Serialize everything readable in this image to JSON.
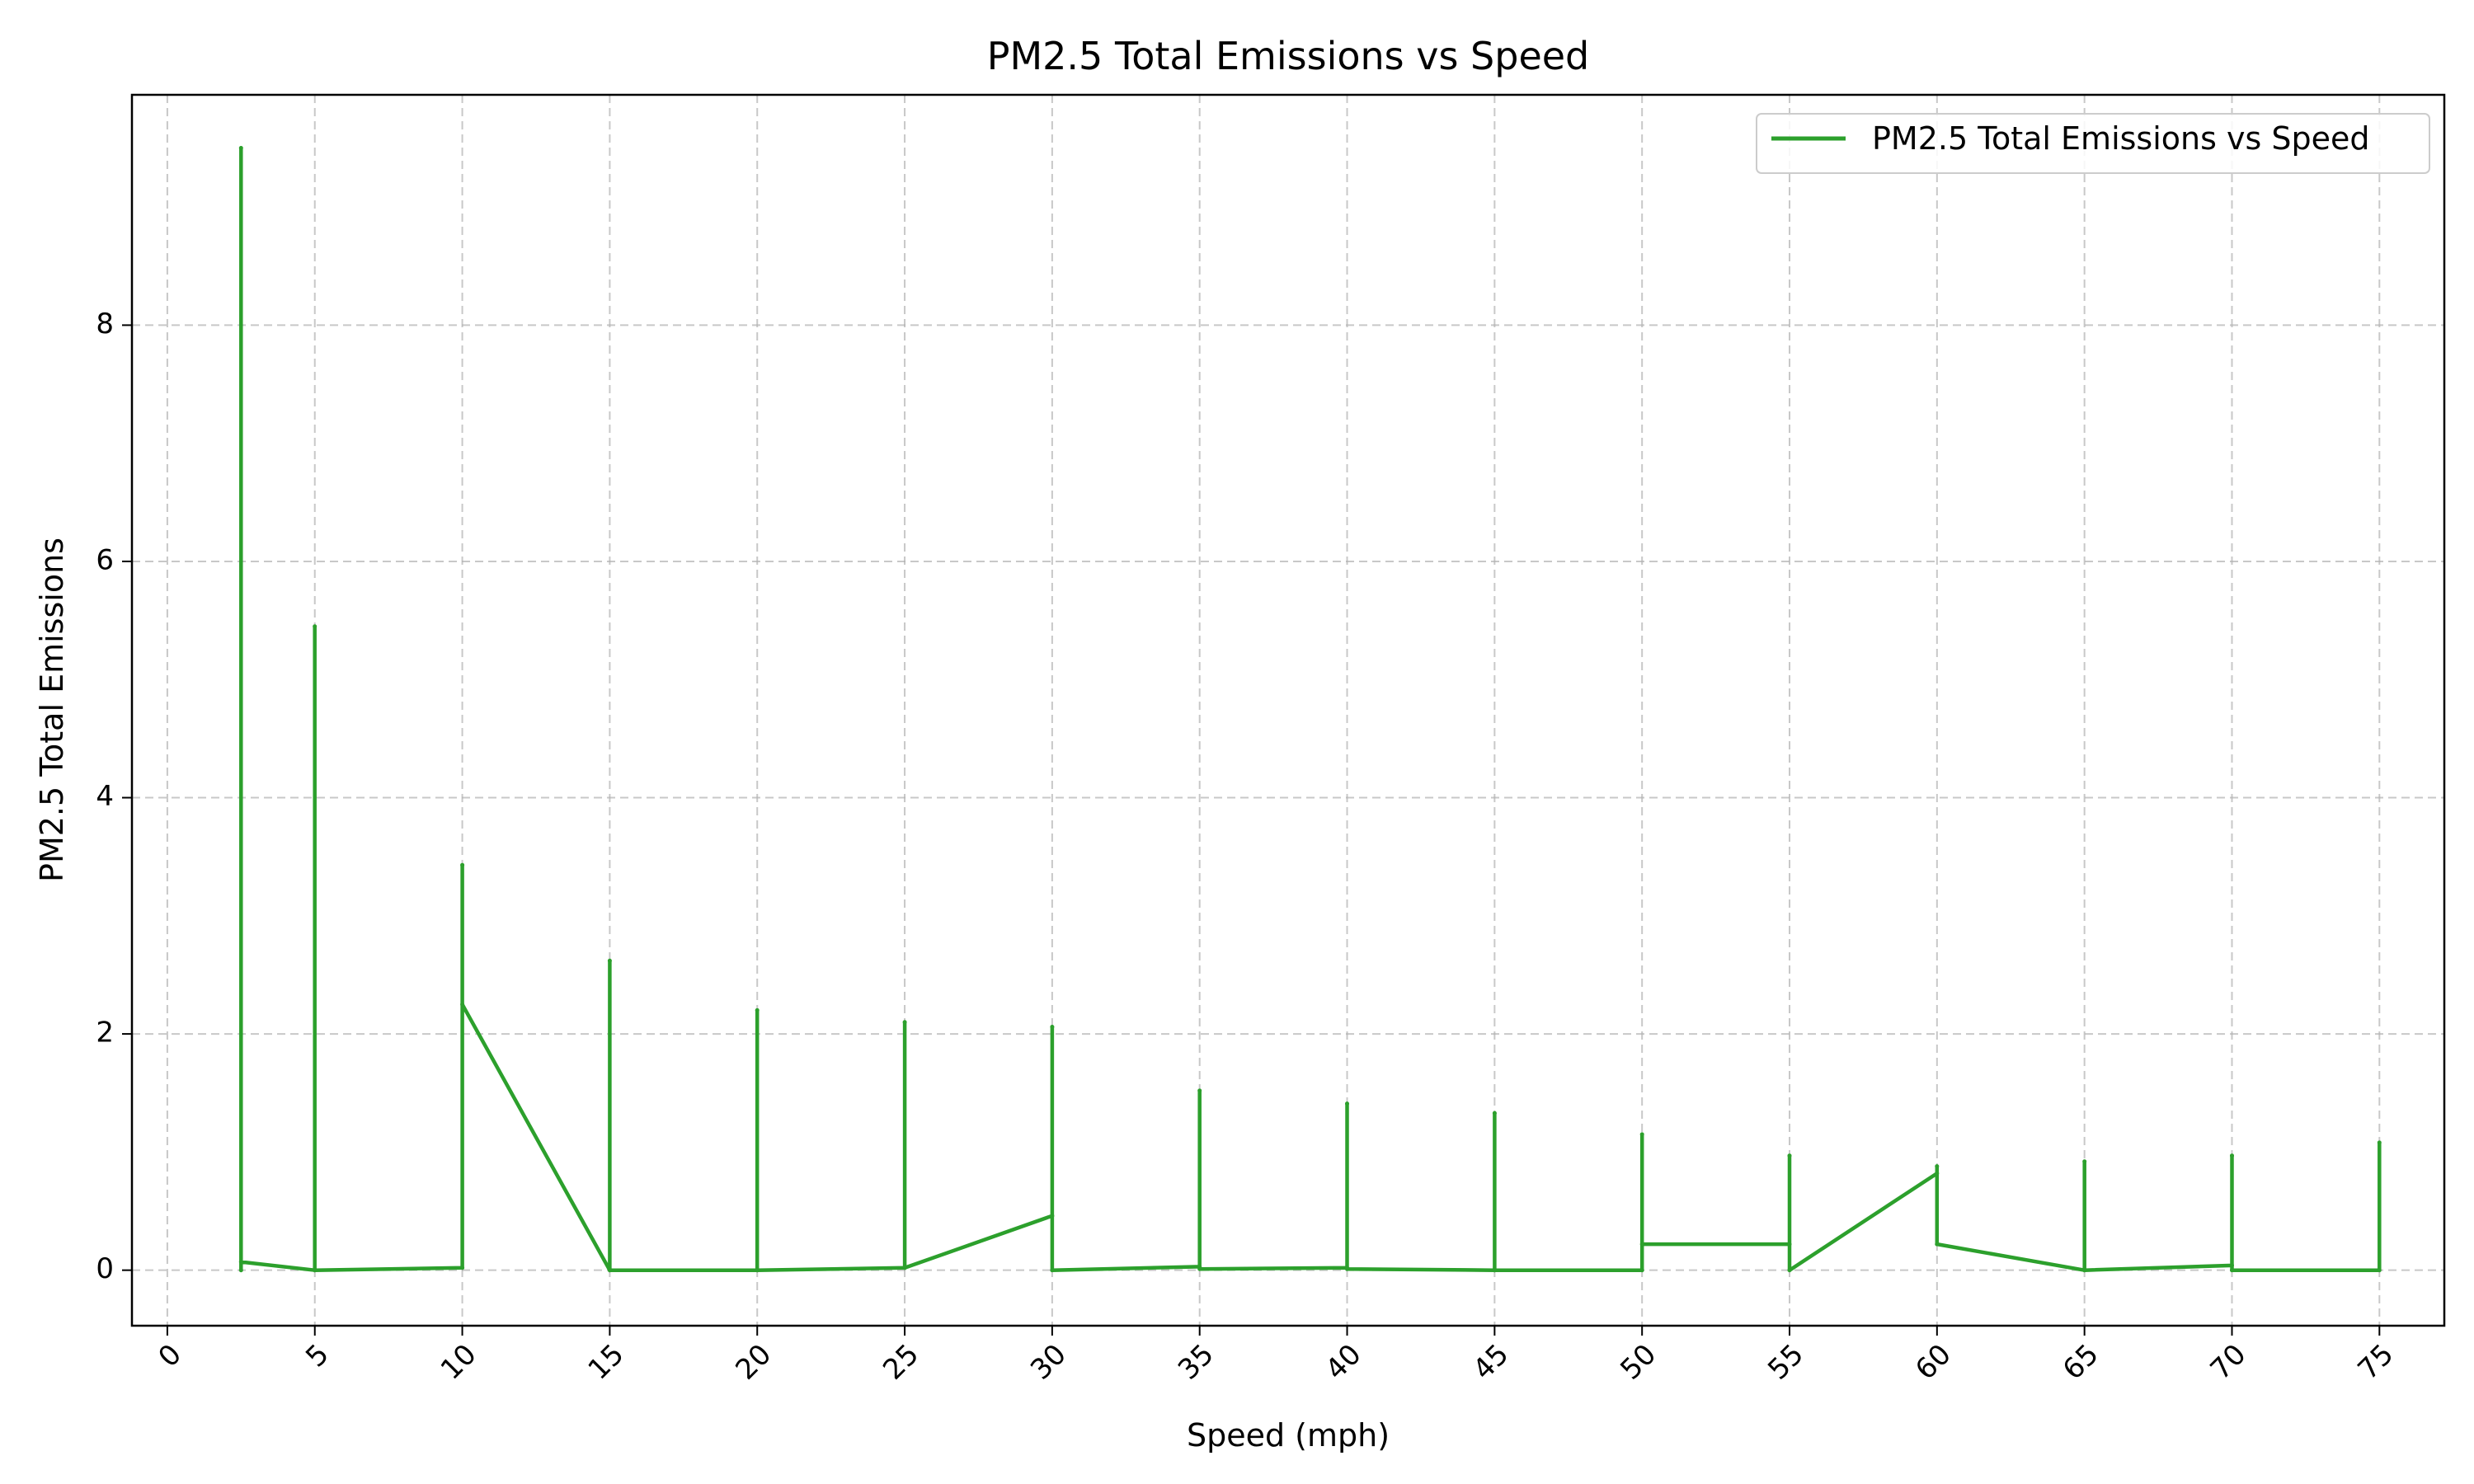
{
  "chart_data": {
    "type": "line",
    "title": "PM2.5 Total Emissions vs Speed",
    "xlabel": "Speed (mph)",
    "ylabel": "PM2.5 Total Emissions",
    "xlim": [
      -1.2,
      77.2
    ],
    "ylim": [
      -0.47,
      9.95
    ],
    "xticks": [
      0,
      5,
      10,
      15,
      20,
      25,
      30,
      35,
      40,
      45,
      50,
      55,
      60,
      65,
      70,
      75
    ],
    "yticks": [
      0,
      2,
      4,
      6,
      8
    ],
    "grid": true,
    "legend_position": "top-right",
    "series": [
      {
        "name": "PM2.5 Total Emissions vs Speed",
        "color": "#2ca02c",
        "x": [
          2.5,
          2.5,
          2.5,
          5,
          5,
          5,
          10,
          10,
          10,
          15,
          15,
          15,
          20,
          20,
          20,
          25,
          25,
          25,
          30,
          30,
          30,
          35,
          35,
          35,
          40,
          40,
          40,
          45,
          45,
          45,
          50,
          50,
          50,
          55,
          55,
          55,
          60,
          60,
          60,
          65,
          65,
          65,
          70,
          70,
          70,
          75,
          75
        ],
        "y": [
          0.0,
          9.5,
          0.07,
          0.0,
          5.45,
          0.0,
          0.02,
          3.43,
          2.25,
          0.0,
          2.62,
          0.0,
          0.0,
          2.2,
          0.0,
          0.02,
          2.1,
          0.02,
          0.46,
          2.06,
          0.0,
          0.03,
          1.52,
          0.01,
          0.02,
          1.41,
          0.01,
          0.0,
          1.33,
          0.0,
          0.0,
          1.15,
          0.22,
          0.22,
          0.97,
          0.0,
          0.82,
          0.88,
          0.22,
          0.0,
          0.92,
          0.0,
          0.04,
          0.97,
          0.0,
          0.0,
          1.08
        ]
      }
    ]
  }
}
